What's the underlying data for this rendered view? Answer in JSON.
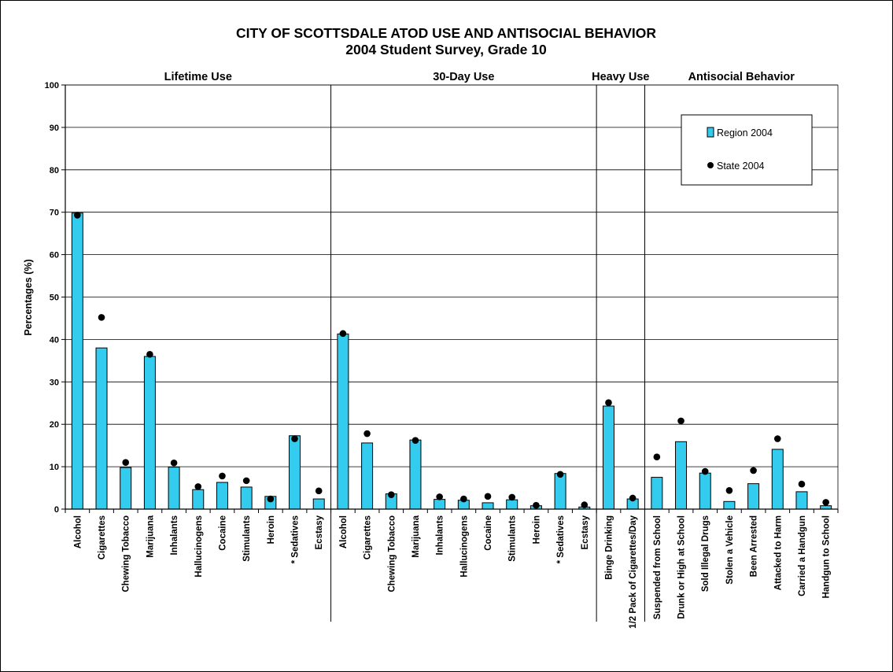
{
  "chart_data": {
    "type": "bar",
    "title": "CITY OF SCOTTSDALE ATOD USE AND ANTISOCIAL BEHAVIOR",
    "subtitle": "2004 Student Survey, Grade 10",
    "ylabel": "Percentages (%)",
    "ylim": [
      0,
      100
    ],
    "yticks": [
      0,
      10,
      20,
      30,
      40,
      50,
      60,
      70,
      80,
      90,
      100
    ],
    "grid": true,
    "legend_position": "top-right",
    "sections": [
      {
        "label": "Lifetime Use",
        "start": 0,
        "end": 10
      },
      {
        "label": "30-Day Use",
        "start": 11,
        "end": 21
      },
      {
        "label": "Heavy Use",
        "start": 22,
        "end": 23
      },
      {
        "label": "Antisocial Behavior",
        "start": 24,
        "end": 31
      }
    ],
    "categories": [
      "Alcohol",
      "Cigarettes",
      "Chewing Tobacco",
      "Marijuana",
      "Inhalants",
      "Hallucinogens",
      "Cocaine",
      "Stimulants",
      "Heroin",
      "* Sedatives",
      "Ecstasy",
      "Alcohol",
      "Cigarettes",
      "Chewing Tobacco",
      "Marijuana",
      "Inhalants",
      "Hallucinogens",
      "Cocaine",
      "Stimulants",
      "Heroin",
      "* Sedatives",
      "Ecstasy",
      "Binge Drinking",
      "1/2 Pack of Cigarettes/Day",
      "Suspended from School",
      "Drunk or High at School",
      "Sold Illegal Drugs",
      "Stolen a Vehicle",
      "Been Arrested",
      "Attacked to Harm",
      "Carried a Handgun",
      "Handgun to School"
    ],
    "series": [
      {
        "name": "Region 2004",
        "kind": "bar",
        "color": "#33CCEE",
        "values": [
          69.8,
          38,
          9.8,
          36,
          9.9,
          4.6,
          6.3,
          5.2,
          3,
          17.3,
          2.4,
          41.3,
          15.6,
          3.6,
          16.3,
          2.3,
          2.1,
          1.5,
          2.2,
          0.8,
          8.4,
          0.5,
          24.3,
          2.4,
          7.5,
          15.9,
          8.5,
          1.8,
          6,
          14.1,
          4.1,
          0.8
        ]
      },
      {
        "name": "State 2004",
        "kind": "dot",
        "color": "#000000",
        "values": [
          69.3,
          45.2,
          11,
          36.5,
          10.9,
          5.3,
          7.8,
          6.7,
          2.4,
          16.6,
          4.3,
          41.4,
          17.8,
          3.4,
          16.2,
          2.9,
          2.4,
          3,
          2.8,
          0.9,
          8.2,
          1,
          25.1,
          2.6,
          12.3,
          20.8,
          8.9,
          4.4,
          9.1,
          16.6,
          5.9,
          1.6
        ]
      }
    ]
  }
}
